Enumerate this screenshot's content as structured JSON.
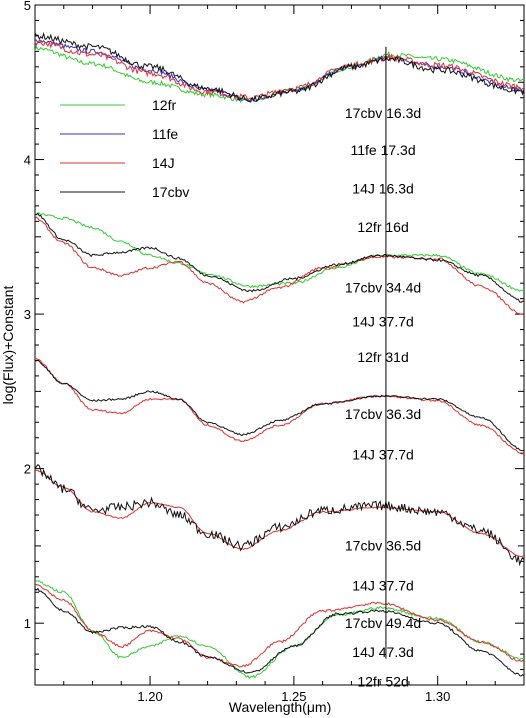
{
  "chart_data": {
    "type": "line",
    "title": "",
    "xlabel": "Wavelength(μm)",
    "ylabel": "log(Flux)+Constant",
    "xlim": [
      1.16,
      1.33
    ],
    "ylim": [
      0.6,
      5.0
    ],
    "xticks": [
      {
        "value": 1.2,
        "label": "1.20"
      },
      {
        "value": 1.25,
        "label": "1.25"
      },
      {
        "value": 1.3,
        "label": "1.30"
      }
    ],
    "yticks": [
      {
        "value": 1,
        "label": "1"
      },
      {
        "value": 2,
        "label": "2"
      },
      {
        "value": 3,
        "label": "3"
      },
      {
        "value": 4,
        "label": "4"
      },
      {
        "value": 5,
        "label": "5"
      }
    ],
    "marker_line_x": 1.282,
    "legend": {
      "placement": "upper-left",
      "entries": [
        {
          "label": "12fr",
          "color": "#33cc33"
        },
        {
          "label": "11fe",
          "color": "#3333cc"
        },
        {
          "label": "14J",
          "color": "#e03030"
        },
        {
          "label": "17cbv",
          "color": "#111111"
        }
      ]
    },
    "annotations": [
      {
        "text": "17cbv 16.3d",
        "x": 1.281,
        "y": 4.27
      },
      {
        "text": "11fe 17.3d",
        "x": 1.281,
        "y": 4.03
      },
      {
        "text": "14J 16.3d",
        "x": 1.281,
        "y": 3.78
      },
      {
        "text": "12fr 16d",
        "x": 1.281,
        "y": 3.53
      },
      {
        "text": "17cbv 34.4d",
        "x": 1.281,
        "y": 3.14
      },
      {
        "text": "14J 37.7d",
        "x": 1.281,
        "y": 2.92
      },
      {
        "text": "12fr 31d",
        "x": 1.281,
        "y": 2.69
      },
      {
        "text": "17cbv 36.3d",
        "x": 1.281,
        "y": 2.32
      },
      {
        "text": "14J 37.7d",
        "x": 1.281,
        "y": 2.06
      },
      {
        "text": "17cbv 36.5d",
        "x": 1.281,
        "y": 1.47
      },
      {
        "text": "14J 37.7d",
        "x": 1.281,
        "y": 1.21
      },
      {
        "text": "17cbv 49.4d",
        "x": 1.281,
        "y": 0.97
      },
      {
        "text": "14J 47.3d",
        "x": 1.281,
        "y": 0.78
      },
      {
        "text": "12fr 52d",
        "x": 1.281,
        "y": 0.59
      }
    ],
    "series": [
      {
        "name": "12fr",
        "group": 1,
        "color": "#33cc33",
        "noise": 0.015,
        "x": [
          1.16,
          1.18,
          1.2,
          1.22,
          1.235,
          1.25,
          1.27,
          1.283,
          1.3,
          1.33
        ],
        "values": [
          4.72,
          4.62,
          4.5,
          4.42,
          4.38,
          4.45,
          4.6,
          4.68,
          4.65,
          4.51
        ]
      },
      {
        "name": "11fe",
        "group": 1,
        "color": "#3333cc",
        "noise": 0.015,
        "x": [
          1.16,
          1.18,
          1.2,
          1.22,
          1.235,
          1.25,
          1.27,
          1.283,
          1.3,
          1.33
        ],
        "values": [
          4.77,
          4.7,
          4.58,
          4.45,
          4.38,
          4.45,
          4.6,
          4.66,
          4.6,
          4.45
        ]
      },
      {
        "name": "14J",
        "group": 1,
        "color": "#e03030",
        "noise": 0.02,
        "x": [
          1.16,
          1.18,
          1.2,
          1.22,
          1.235,
          1.25,
          1.27,
          1.283,
          1.3,
          1.33
        ],
        "values": [
          4.76,
          4.68,
          4.56,
          4.44,
          4.4,
          4.46,
          4.61,
          4.66,
          4.61,
          4.47
        ]
      },
      {
        "name": "17cbv",
        "group": 1,
        "color": "#111111",
        "noise": 0.02,
        "x": [
          1.16,
          1.18,
          1.2,
          1.22,
          1.235,
          1.25,
          1.27,
          1.283,
          1.3,
          1.33
        ],
        "values": [
          4.8,
          4.73,
          4.6,
          4.46,
          4.39,
          4.44,
          4.6,
          4.65,
          4.58,
          4.44
        ]
      },
      {
        "name": "12fr",
        "group": 2,
        "color": "#33cc33",
        "noise": 0.008,
        "x": [
          1.16,
          1.17,
          1.18,
          1.19,
          1.2,
          1.21,
          1.22,
          1.235,
          1.25,
          1.265,
          1.28,
          1.3,
          1.315,
          1.33
        ],
        "values": [
          3.65,
          3.62,
          3.56,
          3.47,
          3.38,
          3.33,
          3.26,
          3.18,
          3.2,
          3.3,
          3.38,
          3.38,
          3.26,
          3.15
        ]
      },
      {
        "name": "14J",
        "group": 2,
        "color": "#e03030",
        "noise": 0.008,
        "x": [
          1.16,
          1.17,
          1.18,
          1.19,
          1.2,
          1.21,
          1.22,
          1.232,
          1.245,
          1.26,
          1.28,
          1.3,
          1.315,
          1.33
        ],
        "values": [
          3.62,
          3.46,
          3.3,
          3.25,
          3.3,
          3.34,
          3.2,
          3.08,
          3.17,
          3.3,
          3.37,
          3.36,
          3.18,
          3.0
        ]
      },
      {
        "name": "17cbv",
        "group": 2,
        "color": "#111111",
        "noise": 0.008,
        "x": [
          1.16,
          1.17,
          1.18,
          1.19,
          1.2,
          1.21,
          1.22,
          1.235,
          1.25,
          1.265,
          1.28,
          1.3,
          1.315,
          1.33
        ],
        "values": [
          3.65,
          3.48,
          3.38,
          3.4,
          3.43,
          3.36,
          3.25,
          3.15,
          3.23,
          3.32,
          3.38,
          3.35,
          3.25,
          3.08
        ]
      },
      {
        "name": "14J",
        "group": 3,
        "color": "#e03030",
        "noise": 0.006,
        "x": [
          1.16,
          1.17,
          1.18,
          1.19,
          1.2,
          1.21,
          1.22,
          1.232,
          1.245,
          1.26,
          1.28,
          1.3,
          1.315,
          1.33
        ],
        "values": [
          2.71,
          2.55,
          2.38,
          2.36,
          2.45,
          2.45,
          2.28,
          2.18,
          2.28,
          2.42,
          2.47,
          2.44,
          2.28,
          2.1
        ]
      },
      {
        "name": "17cbv",
        "group": 3,
        "color": "#111111",
        "noise": 0.006,
        "x": [
          1.16,
          1.17,
          1.18,
          1.19,
          1.2,
          1.21,
          1.22,
          1.232,
          1.245,
          1.26,
          1.28,
          1.3,
          1.315,
          1.33
        ],
        "values": [
          2.7,
          2.55,
          2.44,
          2.45,
          2.5,
          2.45,
          2.3,
          2.22,
          2.31,
          2.42,
          2.47,
          2.45,
          2.33,
          2.12
        ]
      },
      {
        "name": "14J",
        "group": 4,
        "color": "#e03030",
        "noise": 0.004,
        "x": [
          1.16,
          1.17,
          1.18,
          1.19,
          1.2,
          1.21,
          1.22,
          1.232,
          1.245,
          1.26,
          1.28,
          1.3,
          1.315,
          1.33
        ],
        "values": [
          1.99,
          1.88,
          1.72,
          1.68,
          1.78,
          1.75,
          1.58,
          1.48,
          1.6,
          1.72,
          1.75,
          1.72,
          1.58,
          1.43
        ]
      },
      {
        "name": "17cbv",
        "group": 4,
        "color": "#111111",
        "noise": 0.03,
        "x": [
          1.16,
          1.17,
          1.18,
          1.19,
          1.2,
          1.21,
          1.22,
          1.232,
          1.245,
          1.26,
          1.28,
          1.3,
          1.315,
          1.33
        ],
        "values": [
          2.0,
          1.87,
          1.73,
          1.75,
          1.78,
          1.7,
          1.58,
          1.5,
          1.62,
          1.73,
          1.76,
          1.72,
          1.6,
          1.4
        ]
      },
      {
        "name": "12fr",
        "group": 5,
        "color": "#33cc33",
        "noise": 0.008,
        "x": [
          1.16,
          1.17,
          1.18,
          1.19,
          1.2,
          1.21,
          1.22,
          1.235,
          1.25,
          1.265,
          1.28,
          1.3,
          1.315,
          1.33
        ],
        "values": [
          1.27,
          1.2,
          0.95,
          0.78,
          0.85,
          0.92,
          0.85,
          0.65,
          0.85,
          1.05,
          1.1,
          1.03,
          0.88,
          0.77
        ]
      },
      {
        "name": "14J",
        "group": 5,
        "color": "#e03030",
        "noise": 0.008,
        "x": [
          1.16,
          1.17,
          1.18,
          1.19,
          1.2,
          1.21,
          1.22,
          1.232,
          1.245,
          1.26,
          1.28,
          1.3,
          1.315,
          1.33
        ],
        "values": [
          1.25,
          1.15,
          0.95,
          0.85,
          0.95,
          0.9,
          0.78,
          0.72,
          0.88,
          1.08,
          1.13,
          1.02,
          0.88,
          0.75
        ]
      },
      {
        "name": "17cbv",
        "group": 5,
        "color": "#111111",
        "noise": 0.008,
        "x": [
          1.16,
          1.17,
          1.18,
          1.19,
          1.2,
          1.21,
          1.22,
          1.235,
          1.25,
          1.265,
          1.28,
          1.3,
          1.315,
          1.33
        ],
        "values": [
          1.22,
          1.08,
          0.94,
          0.97,
          0.98,
          0.88,
          0.78,
          0.68,
          0.85,
          1.06,
          1.08,
          1.0,
          0.82,
          0.66
        ]
      }
    ]
  }
}
